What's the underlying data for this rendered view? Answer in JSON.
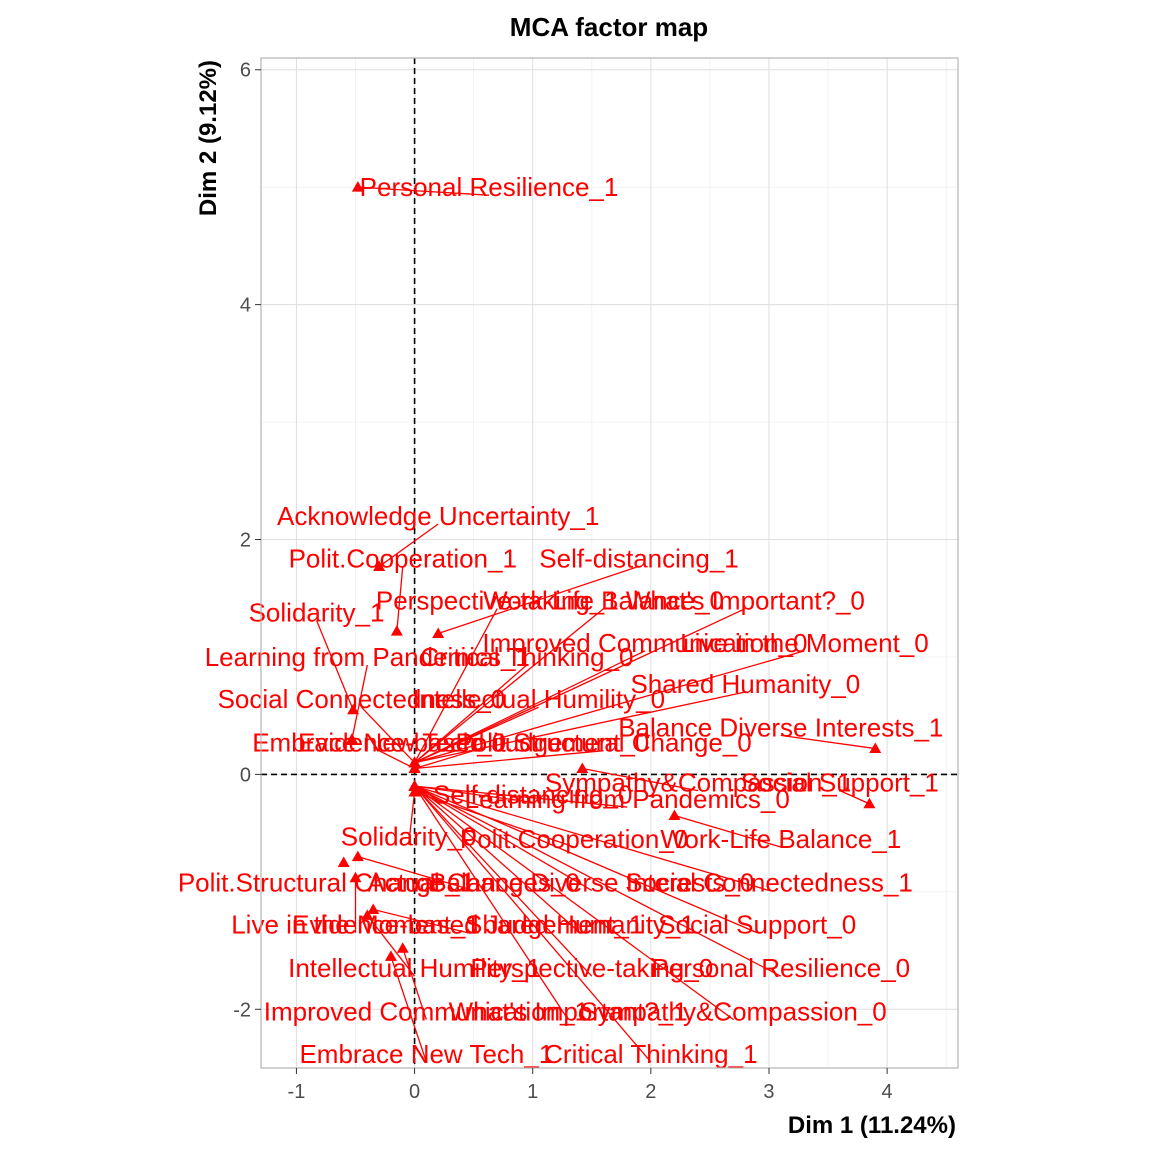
{
  "chart_data": {
    "type": "scatter",
    "title": "MCA factor map",
    "xlabel": "Dim 1 (11.24%)",
    "ylabel": "Dim 2 (9.12%)",
    "xlim": [
      -1.3,
      4.6
    ],
    "ylim": [
      -2.5,
      6.1
    ],
    "xticks": [
      -1,
      0,
      1,
      2,
      3,
      4
    ],
    "yticks": [
      -2,
      0,
      2,
      4,
      6
    ],
    "grid": true,
    "reference_lines": {
      "x": 0,
      "y": 0,
      "style": "dashed"
    },
    "series_color": "#FF0000",
    "points": [
      {
        "label": "Personal Resilience_1",
        "x": -0.48,
        "y": 5.0,
        "lx": 0.63,
        "ly": 5.0
      },
      {
        "label": "Acknowledge Uncertainty_1",
        "x": -0.3,
        "y": 1.77,
        "lx": 0.2,
        "ly": 2.2
      },
      {
        "label": "Polit.Cooperation_1",
        "x": -0.15,
        "y": 1.22,
        "lx": -0.1,
        "ly": 1.84
      },
      {
        "label": "Self-distancing_1",
        "x": 0.2,
        "y": 1.2,
        "lx": 1.9,
        "ly": 1.84
      },
      {
        "label": "Perspective-taking_1",
        "x": 0.0,
        "y": 0.1,
        "lx": 0.7,
        "ly": 1.48
      },
      {
        "label": "Work-Life Balance_0",
        "x": 0.0,
        "y": 0.1,
        "lx": 1.6,
        "ly": 1.48
      },
      {
        "label": "What's Important?_0",
        "x": 0.0,
        "y": 0.1,
        "lx": 2.8,
        "ly": 1.48
      },
      {
        "label": "Solidarity_1",
        "x": -0.52,
        "y": 0.55,
        "lx": -0.83,
        "ly": 1.38
      },
      {
        "label": "Improved Communication_0",
        "x": 0.0,
        "y": 0.1,
        "lx": 1.95,
        "ly": 1.12
      },
      {
        "label": "Live in the Moment_0",
        "x": 0.0,
        "y": 0.1,
        "lx": 3.3,
        "ly": 1.12
      },
      {
        "label": "Learning from Pandemics_1",
        "x": -0.53,
        "y": 0.3,
        "lx": -0.4,
        "ly": 1.0
      },
      {
        "label": "Critical Thinking_0",
        "x": 0.0,
        "y": 0.1,
        "lx": 0.95,
        "ly": 1.0
      },
      {
        "label": "Shared Humanity_0",
        "x": 0.0,
        "y": 0.1,
        "lx": 2.8,
        "ly": 0.77
      },
      {
        "label": "Social Connectedness_0",
        "x": 0.0,
        "y": 0.1,
        "lx": -0.45,
        "ly": 0.64
      },
      {
        "label": "Intellectual Humility_0",
        "x": 0.0,
        "y": 0.1,
        "lx": 1.05,
        "ly": 0.64
      },
      {
        "label": "Balance Diverse Interests_1",
        "x": 3.9,
        "y": 0.22,
        "lx": 3.1,
        "ly": 0.4
      },
      {
        "label": "Embrace New Tech_0",
        "x": 0.0,
        "y": 0.05,
        "lx": -0.3,
        "ly": 0.27
      },
      {
        "label": "Evidence-based Judgement_0",
        "x": 0.0,
        "y": 0.05,
        "lx": 0.5,
        "ly": 0.27
      },
      {
        "label": "Polit.Structural Change_0",
        "x": 0.0,
        "y": 0.05,
        "lx": 1.6,
        "ly": 0.27
      },
      {
        "label": "Sympathy&Compassion_1",
        "x": 1.42,
        "y": 0.05,
        "lx": 2.4,
        "ly": -0.07
      },
      {
        "label": "Social Support_1",
        "x": 3.85,
        "y": -0.25,
        "lx": 3.6,
        "ly": -0.07
      },
      {
        "label": "Self-distancing_0",
        "x": 0.0,
        "y": -0.1,
        "lx": 1.0,
        "ly": -0.17
      },
      {
        "label": "Learning from Pandemics_0",
        "x": 0.0,
        "y": -0.1,
        "lx": 1.8,
        "ly": -0.21
      },
      {
        "label": "Solidarity_0",
        "x": 0.0,
        "y": -0.15,
        "lx": -0.05,
        "ly": -0.53
      },
      {
        "label": "Polit.Cooperation_0",
        "x": 0.0,
        "y": -0.15,
        "lx": 1.35,
        "ly": -0.55
      },
      {
        "label": "Work-Life Balance_1",
        "x": 2.2,
        "y": -0.35,
        "lx": 3.1,
        "ly": -0.55
      },
      {
        "label": "Polit.Structural Change_1",
        "x": -0.6,
        "y": -0.75,
        "lx": -0.75,
        "ly": -0.92
      },
      {
        "label": "Actual Changes_0",
        "x": -0.48,
        "y": -0.7,
        "lx": 0.5,
        "ly": -0.92
      },
      {
        "label": "Balance Diverse Interests_0",
        "x": 0.0,
        "y": -0.1,
        "lx": 1.5,
        "ly": -0.92
      },
      {
        "label": "Social Connectedness_1",
        "x": 0.0,
        "y": -0.1,
        "lx": 3.0,
        "ly": -0.92
      },
      {
        "label": "Live in the Moment_1",
        "x": -0.5,
        "y": -0.88,
        "lx": -0.5,
        "ly": -1.28
      },
      {
        "label": "Evidence-based Judgement_1",
        "x": -0.35,
        "y": -1.15,
        "lx": 0.45,
        "ly": -1.28
      },
      {
        "label": "Shared Humanity_1",
        "x": 0.0,
        "y": -0.1,
        "lx": 1.4,
        "ly": -1.28
      },
      {
        "label": "Social Support_0",
        "x": 0.0,
        "y": -0.1,
        "lx": 2.9,
        "ly": -1.28
      },
      {
        "label": "Intellectual Humility_1",
        "x": -0.4,
        "y": -1.2,
        "lx": 0.0,
        "ly": -1.65
      },
      {
        "label": "Perspective-taking_0",
        "x": 0.0,
        "y": -0.1,
        "lx": 1.5,
        "ly": -1.65
      },
      {
        "label": "Personal Resilience_0",
        "x": 0.0,
        "y": -0.1,
        "lx": 3.1,
        "ly": -1.65
      },
      {
        "label": "Improved Communication_1",
        "x": -0.1,
        "y": -1.48,
        "lx": 0.1,
        "ly": -2.02
      },
      {
        "label": "What's Important?_1",
        "x": 0.0,
        "y": -0.1,
        "lx": 1.3,
        "ly": -2.02
      },
      {
        "label": "Sympathy&Compassion_0",
        "x": 0.0,
        "y": -0.1,
        "lx": 2.7,
        "ly": -2.02
      },
      {
        "label": "Embrace New Tech_1",
        "x": -0.2,
        "y": -1.55,
        "lx": 0.1,
        "ly": -2.38
      },
      {
        "label": "Critical Thinking_1",
        "x": 0.0,
        "y": -0.1,
        "lx": 2.0,
        "ly": -2.38
      }
    ]
  }
}
